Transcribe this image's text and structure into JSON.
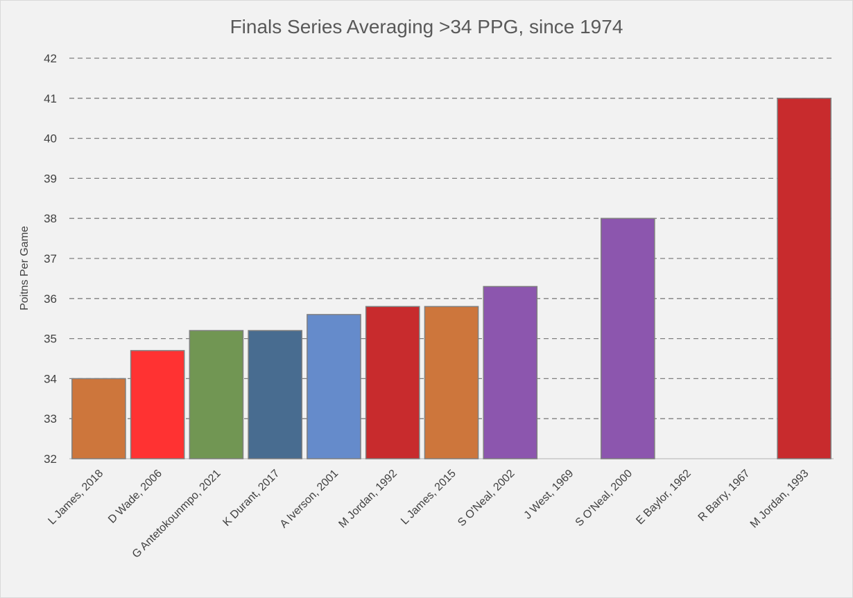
{
  "chart_data": {
    "type": "bar",
    "title": "Finals Series Averaging >34 PPG, since 1974",
    "xlabel": "",
    "ylabel": "Poitns Per Game",
    "ylim": [
      32,
      42
    ],
    "yticks": [
      32,
      33,
      34,
      35,
      36,
      37,
      38,
      39,
      40,
      41,
      42
    ],
    "grid": true,
    "categories": [
      "L James, 2018",
      "D Wade, 2006",
      "G Antetokounmpo, 2021",
      "K Durant, 2017",
      "A Iverson, 2001",
      "M Jordan, 1992",
      "L James, 2015",
      "S O'Neal, 2002",
      "J West, 1969",
      "S O'Neal, 2000",
      "E Baylor, 1962",
      "R Barry, 1967",
      "M Jordan, 1993"
    ],
    "values": [
      34.0,
      34.7,
      35.2,
      35.2,
      35.6,
      35.8,
      35.8,
      36.3,
      null,
      38.0,
      null,
      null,
      41.0
    ],
    "colors": [
      "#cd763c",
      "#ff3232",
      "#719653",
      "#486c90",
      "#658bcb",
      "#c82b2d",
      "#cd763c",
      "#8c56ae",
      null,
      "#8c56ae",
      null,
      null,
      "#c82b2d"
    ]
  }
}
